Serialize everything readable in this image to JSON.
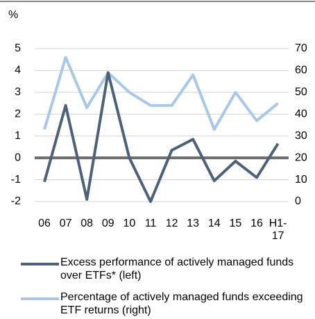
{
  "chart_data": {
    "type": "line",
    "y_label": "%",
    "categories": [
      "06",
      "07",
      "08",
      "09",
      "10",
      "11",
      "12",
      "13",
      "14",
      "15",
      "16",
      "H1-\n17"
    ],
    "series": [
      {
        "name": "Excess performance of actively managed funds over ETFs* (left)",
        "color": "#4d6279",
        "values": [
          -1.1,
          2.4,
          -1.9,
          3.9,
          0.0,
          -2.0,
          0.35,
          0.85,
          -1.05,
          -0.15,
          -0.9,
          0.65
        ]
      },
      {
        "name": "Percentage of actively managed  funds exceeding ETF returns (right)",
        "color": "#a9c8e8",
        "axis": "y2",
        "values": [
          33,
          66,
          43,
          59,
          50,
          44,
          44,
          58,
          33,
          50,
          37,
          45
        ]
      }
    ],
    "ylim": [
      -2,
      5
    ],
    "yticks": [
      5,
      4,
      3,
      2,
      1,
      0,
      -1,
      -2
    ],
    "y2lim": [
      0,
      70
    ],
    "y2ticks": [
      70,
      60,
      50,
      40,
      30,
      20,
      10,
      0
    ],
    "grid": true,
    "zero_line_color": "#6d6d6d"
  }
}
